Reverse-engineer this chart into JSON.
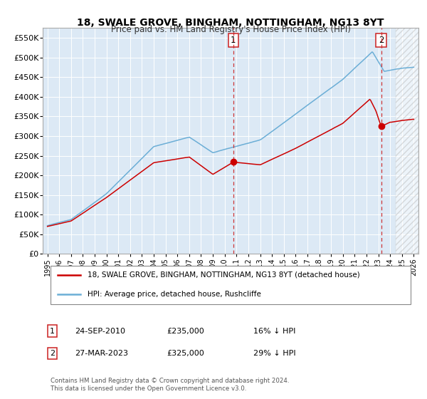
{
  "title": "18, SWALE GROVE, BINGHAM, NOTTINGHAM, NG13 8YT",
  "subtitle": "Price paid vs. HM Land Registry's House Price Index (HPI)",
  "bg_color": "#dce9f5",
  "hpi_color": "#6baed6",
  "property_color": "#cc0000",
  "ylim": [
    0,
    575000
  ],
  "yticks": [
    0,
    50000,
    100000,
    150000,
    200000,
    250000,
    300000,
    350000,
    400000,
    450000,
    500000,
    550000
  ],
  "xlim_start": 1994.6,
  "xlim_end": 2026.4,
  "marker1_x": 2010.73,
  "marker1_y": 235000,
  "marker1_label": "1",
  "marker2_x": 2023.24,
  "marker2_y": 325000,
  "marker2_label": "2",
  "legend_property": "18, SWALE GROVE, BINGHAM, NOTTINGHAM, NG13 8YT (detached house)",
  "legend_hpi": "HPI: Average price, detached house, Rushcliffe",
  "annotation1_num": "1",
  "annotation1_date": "24-SEP-2010",
  "annotation1_price": "£235,000",
  "annotation1_hpi": "16% ↓ HPI",
  "annotation2_num": "2",
  "annotation2_date": "27-MAR-2023",
  "annotation2_price": "£325,000",
  "annotation2_hpi": "29% ↓ HPI",
  "footer": "Contains HM Land Registry data © Crown copyright and database right 2024.\nThis data is licensed under the Open Government Licence v3.0.",
  "hatch_start": 2024.5
}
